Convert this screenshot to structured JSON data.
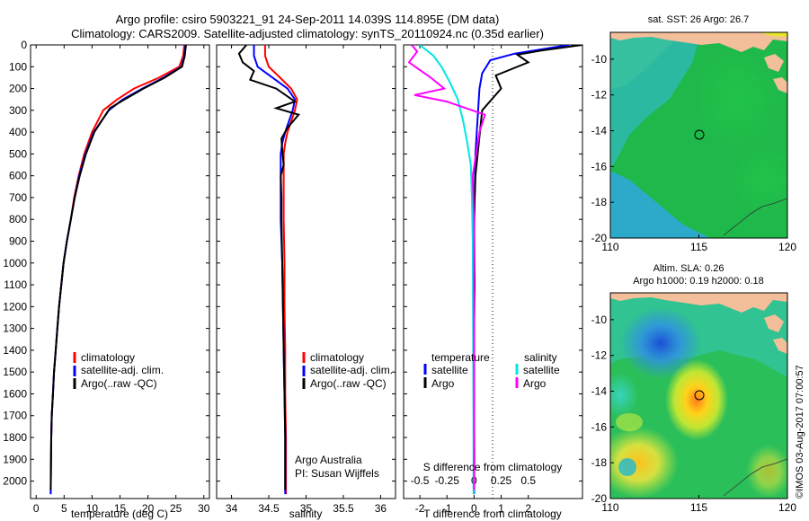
{
  "header": {
    "line1": "Argo profile: csiro 5903221_91 24-Sep-2011 14.039S 114.895E (DM data)",
    "line2": "Climatology: CARS2009. Satellite-adjusted climatology: synTS_20110924.nc (0.35d earlier)"
  },
  "colors": {
    "climatology": "#ff0000",
    "satellite": "#0000ff",
    "argo": "#000000",
    "salinity_satellite": "#00e5e5",
    "salinity_argo": "#ff00ff",
    "land": "#f2bf9a"
  },
  "chart_data": [
    {
      "id": "temperature",
      "type": "line",
      "xlabel": "temperature (deg C)",
      "ylabel": "",
      "xlim": [
        -1,
        31
      ],
      "ylim": [
        2080,
        0
      ],
      "xticks": [
        0,
        5,
        10,
        15,
        20,
        25,
        30
      ],
      "xtick_labels": [
        "0",
        "5",
        "10",
        "15",
        "20",
        "25",
        "30"
      ],
      "yticks": [
        0,
        100,
        200,
        300,
        400,
        500,
        600,
        700,
        800,
        900,
        1000,
        1100,
        1200,
        1300,
        1400,
        1500,
        1600,
        1700,
        1800,
        1900,
        2000
      ],
      "ytick_labels": [
        "0",
        "100",
        "200",
        "300",
        "400",
        "500",
        "600",
        "700",
        "800",
        "900",
        "1000",
        "1100",
        "1200",
        "1300",
        "1400",
        "1500",
        "1600",
        "1700",
        "1800",
        "1900",
        "2000"
      ],
      "legend": [
        "climatology",
        "satellite-adj. clim.",
        "Argo(..raw -QC)"
      ],
      "series": [
        {
          "name": "climatology",
          "color": "#ff0000",
          "x": [
            26.5,
            26.3,
            25.6,
            22.0,
            17.5,
            14.5,
            12.0,
            10.0,
            8.6,
            7.6,
            6.8,
            6.2,
            5.5,
            4.9,
            4.5,
            4.1,
            3.8,
            3.5,
            3.2,
            3.0,
            2.8,
            2.7,
            2.6
          ],
          "y": [
            0,
            50,
            100,
            150,
            200,
            250,
            300,
            400,
            500,
            600,
            700,
            800,
            900,
            1000,
            1100,
            1200,
            1300,
            1400,
            1500,
            1600,
            1700,
            1800,
            2060
          ]
        },
        {
          "name": "satellite-adj. clim.",
          "color": "#0000ff",
          "x": [
            26.7,
            26.5,
            26.0,
            22.8,
            19.0,
            15.5,
            13.0,
            10.3,
            8.8,
            7.7,
            6.9,
            6.2,
            5.5,
            4.9,
            4.5,
            4.1,
            3.8,
            3.5,
            3.2,
            3.0,
            2.8,
            2.7,
            2.6
          ],
          "y": [
            0,
            50,
            100,
            150,
            200,
            250,
            300,
            400,
            500,
            600,
            700,
            800,
            900,
            1000,
            1100,
            1200,
            1300,
            1400,
            1500,
            1600,
            1700,
            1800,
            2060
          ]
        },
        {
          "name": "Argo(..raw -QC)",
          "color": "#000000",
          "x": [
            26.8,
            26.6,
            26.1,
            23.0,
            19.2,
            15.8,
            13.2,
            10.4,
            8.9,
            7.8,
            6.9,
            6.2,
            5.5,
            4.9,
            4.5,
            4.1,
            3.8,
            3.5,
            3.2,
            3.0,
            2.8,
            2.7,
            2.6
          ],
          "y": [
            0,
            50,
            100,
            150,
            200,
            250,
            290,
            400,
            500,
            600,
            700,
            800,
            900,
            1000,
            1100,
            1200,
            1300,
            1400,
            1500,
            1600,
            1700,
            1800,
            2040
          ]
        }
      ]
    },
    {
      "id": "salinity",
      "type": "line",
      "xlabel": "salinity",
      "xlim": [
        33.8,
        36.2
      ],
      "ylim": [
        2080,
        0
      ],
      "xticks": [
        34,
        34.5,
        35,
        35.5,
        36
      ],
      "xtick_labels": [
        "34",
        "34.5",
        "35",
        "35.5",
        "36"
      ],
      "legend": [
        "climatology",
        "satellite-adj. clim.",
        "Argo(..raw -QC)"
      ],
      "annotations": [
        "Argo Australia",
        "PI: Susan Wijffels"
      ],
      "series": [
        {
          "name": "climatology",
          "color": "#ff0000",
          "x": [
            34.45,
            34.45,
            34.5,
            34.65,
            34.8,
            34.88,
            34.85,
            34.75,
            34.72,
            34.7,
            34.7,
            34.7,
            34.71,
            34.71,
            34.72,
            34.72,
            34.73,
            34.73,
            34.73
          ],
          "y": [
            0,
            50,
            100,
            150,
            200,
            250,
            300,
            400,
            450,
            500,
            600,
            800,
            1000,
            1200,
            1400,
            1600,
            1800,
            2000,
            2060
          ]
        },
        {
          "name": "satellite-adj. clim.",
          "color": "#0000ff",
          "x": [
            34.3,
            34.3,
            34.35,
            34.55,
            34.75,
            34.85,
            34.82,
            34.72,
            34.68,
            34.66,
            34.66,
            34.66,
            34.68,
            34.69,
            34.7,
            34.71,
            34.72,
            34.72,
            34.72
          ],
          "y": [
            0,
            50,
            100,
            150,
            200,
            250,
            300,
            400,
            450,
            500,
            600,
            800,
            1000,
            1200,
            1400,
            1600,
            1800,
            2000,
            2060
          ]
        },
        {
          "name": "Argo(..raw -QC)",
          "color": "#000000",
          "x": [
            34.2,
            34.1,
            34.15,
            34.3,
            34.25,
            34.6,
            34.85,
            34.6,
            34.9,
            34.75,
            34.67,
            34.68,
            34.7,
            34.66,
            34.67,
            34.67,
            34.68,
            34.69,
            34.7,
            34.71,
            34.72,
            34.72
          ],
          "y": [
            0,
            40,
            80,
            120,
            160,
            200,
            260,
            290,
            320,
            380,
            430,
            480,
            550,
            600,
            700,
            800,
            1000,
            1200,
            1400,
            1600,
            1800,
            2040
          ]
        }
      ]
    },
    {
      "id": "difference",
      "type": "line",
      "xlabel": "T difference from climatology",
      "xlim": [
        -2.6,
        4.0
      ],
      "ylim": [
        2080,
        0
      ],
      "xticks_bottom": [
        -2,
        -1,
        0,
        1,
        2
      ],
      "xtick_labels_bottom": [
        "-2",
        "-1",
        "0",
        "1",
        "2"
      ],
      "xticks_top": [
        -0.5,
        -0.25,
        0,
        0.25,
        0.5
      ],
      "xtick_labels_top": [
        "-0.5",
        "-0.25",
        "0",
        "0.25",
        "0.5"
      ],
      "top_label": "S difference from climatology",
      "legend": {
        "temperature_title": "temperature",
        "salinity_title": "salinity",
        "temperature": [
          "satellite",
          "Argo"
        ],
        "salinity": [
          "satellite",
          "Argo"
        ]
      },
      "series": [
        {
          "name": "temperature satellite",
          "color": "#0000ff",
          "x": [
            3.5,
            2.5,
            1.5,
            0.6,
            0.3,
            0.2,
            0.15,
            0.05,
            0.02,
            0.0,
            0.0,
            0.0,
            0.0,
            0.0
          ],
          "y": [
            0,
            20,
            40,
            70,
            130,
            200,
            300,
            500,
            700,
            900,
            1200,
            1500,
            1800,
            2060
          ]
        },
        {
          "name": "temperature Argo",
          "color": "#000000",
          "x": [
            4.0,
            2.5,
            1.6,
            2.0,
            0.8,
            1.0,
            0.3,
            0.2,
            0.05,
            0.0,
            0.02,
            -0.01,
            0.0,
            0.01,
            0.0
          ],
          "y": [
            0,
            25,
            45,
            80,
            140,
            200,
            300,
            420,
            600,
            800,
            1100,
            1400,
            1700,
            1900,
            2040
          ]
        },
        {
          "name": "salinity satellite",
          "color": "#00e5e5",
          "x": [
            -2.0,
            -1.5,
            -1.2,
            -0.9,
            -0.6,
            -0.4,
            -0.25,
            -0.12,
            -0.08,
            -0.05,
            -0.04,
            -0.03,
            -0.02,
            -0.02
          ],
          "y": [
            0,
            50,
            100,
            170,
            250,
            350,
            450,
            550,
            700,
            900,
            1200,
            1500,
            1800,
            2060
          ]
        },
        {
          "name": "salinity Argo",
          "color": "#ff00ff",
          "x": [
            -2.3,
            -2.1,
            -2.4,
            -1.6,
            -1.1,
            -2.2,
            -1.0,
            0.4,
            0.2,
            0.1,
            -0.05,
            0.0,
            0.0,
            0.0,
            0.0
          ],
          "y": [
            0,
            30,
            80,
            150,
            200,
            230,
            260,
            320,
            400,
            480,
            600,
            800,
            1200,
            1600,
            2040
          ]
        }
      ]
    },
    {
      "id": "sst_map",
      "type": "heatmap",
      "title": "sat. SST: 26 Argo: 26.7",
      "xlim": [
        110,
        120
      ],
      "ylim": [
        -20,
        -8.5
      ],
      "xticks": [
        110,
        115,
        120
      ],
      "xtick_labels": [
        "110",
        "115",
        "120"
      ],
      "yticks": [
        -10,
        -12,
        -14,
        -16,
        -18,
        -20
      ],
      "ytick_labels": [
        "-10",
        "-12",
        "-14",
        "-16",
        "-18",
        "-20"
      ],
      "argo_position": [
        114.895,
        -14.039
      ]
    },
    {
      "id": "sla_map",
      "type": "heatmap",
      "title": "Altim. SLA: 0.26",
      "subtitle": "Argo h1000: 0.19 h2000: 0.18",
      "xlim": [
        110,
        120
      ],
      "ylim": [
        -20,
        -8.5
      ],
      "xticks": [
        110,
        115,
        120
      ],
      "xtick_labels": [
        "110",
        "115",
        "120"
      ],
      "yticks": [
        -10,
        -12,
        -14,
        -16,
        -18,
        -20
      ],
      "ytick_labels": [
        "-10",
        "-12",
        "-14",
        "-16",
        "-18",
        "-20"
      ],
      "argo_position": [
        114.895,
        -14.039
      ]
    }
  ],
  "footer": {
    "credit": "©IMOS 03-Aug-2017 07:00:57"
  }
}
